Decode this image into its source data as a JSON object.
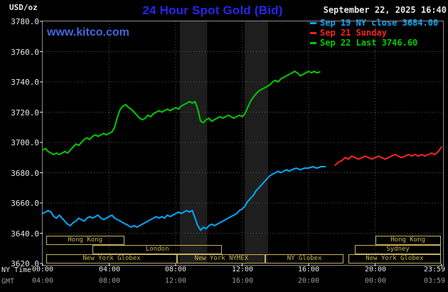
{
  "header": {
    "units": "USD/oz",
    "title": "24 Hour Spot Gold (Bid)",
    "datetime": "September 22, 2025 16:40",
    "watermark": "www.kitco.com"
  },
  "legend": [
    {
      "label": "Sep 19 NY close 3684.00",
      "color": "#00aaff"
    },
    {
      "label": "Sep 21 Sunday",
      "color": "#ff2222"
    },
    {
      "label": "Sep 22 Last 3746.60",
      "color": "#00cc00"
    }
  ],
  "axes": {
    "x": {
      "hours": [
        0,
        4,
        8,
        12,
        16,
        20,
        23.983
      ],
      "ny_labels": [
        "00:00",
        "04:00",
        "08:00",
        "12:00",
        "16:00",
        "20:00",
        "23:59"
      ],
      "gmt_labels": [
        "04:00",
        "08:00",
        "12:00",
        "16:00",
        "20:00",
        "00:00",
        "03:59"
      ],
      "row_labels": {
        "ny": "NY Time",
        "gmt": "GMT"
      }
    },
    "y": {
      "values": [
        3780,
        3760,
        3740,
        3720,
        3700,
        3680,
        3660,
        3640,
        3620
      ],
      "labels": [
        "3780.0",
        "3760.0",
        "3740.0",
        "3720.0",
        "3700.0",
        "3680.0",
        "3660.0",
        "3640.0",
        "3620.0"
      ]
    }
  },
  "sessions": [
    {
      "row": 0,
      "start": 0.2,
      "end": 4.9,
      "label": "Hong Kong"
    },
    {
      "row": 0,
      "start": 20.0,
      "end": 23.95,
      "label": "Hong Kong"
    },
    {
      "row": 1,
      "start": 3.0,
      "end": 10.8,
      "label": "London"
    },
    {
      "row": 1,
      "start": 18.8,
      "end": 23.95,
      "label": "Sydney"
    },
    {
      "row": 2,
      "start": 0.2,
      "end": 8.1,
      "label": "New York Globex"
    },
    {
      "row": 2,
      "start": 8.1,
      "end": 13.4,
      "label": "New York NYMEX"
    },
    {
      "row": 2,
      "start": 13.4,
      "end": 18.1,
      "label": "NY Globex"
    },
    {
      "row": 2,
      "start": 18.4,
      "end": 23.95,
      "label": "New York Globex"
    }
  ],
  "colors": {
    "background": "#000000",
    "title_blue": "#2525ee",
    "watermark_blue": "#4169e1",
    "axis_text": "#e8e8e8",
    "gmt_text": "#9a9a9a",
    "grid": "#565656",
    "border": "#8c8c8c",
    "band": "#1e1e1e",
    "session": "#c6b358"
  },
  "chart_data": {
    "type": "line",
    "title": "24 Hour Spot Gold (Bid)",
    "xlabel": "NY Time",
    "ylabel": "USD/oz",
    "xlim": [
      0,
      24
    ],
    "ylim": [
      3620,
      3780
    ],
    "grid": true,
    "legend_position": "top-right",
    "bands": [
      {
        "from": 8.25,
        "to": 9.9
      },
      {
        "from": 12.15,
        "to": 13.56
      }
    ],
    "series": [
      {
        "id": "sep19",
        "name": "Sep 19 NY close 3684.00",
        "color": "#00aaff",
        "points": [
          [
            0,
            3653
          ],
          [
            0.17,
            3654
          ],
          [
            0.33,
            3655
          ],
          [
            0.5,
            3654
          ],
          [
            0.67,
            3651
          ],
          [
            0.83,
            3650
          ],
          [
            1,
            3652
          ],
          [
            1.17,
            3650
          ],
          [
            1.33,
            3648
          ],
          [
            1.5,
            3646
          ],
          [
            1.67,
            3645
          ],
          [
            1.83,
            3647
          ],
          [
            2,
            3648
          ],
          [
            2.17,
            3650
          ],
          [
            2.33,
            3649
          ],
          [
            2.5,
            3648
          ],
          [
            2.67,
            3650
          ],
          [
            2.83,
            3651
          ],
          [
            3,
            3650
          ],
          [
            3.17,
            3651
          ],
          [
            3.33,
            3652
          ],
          [
            3.5,
            3650
          ],
          [
            3.67,
            3649
          ],
          [
            3.83,
            3650
          ],
          [
            4,
            3651
          ],
          [
            4.17,
            3652
          ],
          [
            4.33,
            3650
          ],
          [
            4.5,
            3649
          ],
          [
            4.67,
            3648
          ],
          [
            4.83,
            3647
          ],
          [
            5,
            3646
          ],
          [
            5.17,
            3645
          ],
          [
            5.33,
            3644
          ],
          [
            5.5,
            3645
          ],
          [
            5.67,
            3644
          ],
          [
            5.83,
            3645
          ],
          [
            6,
            3646
          ],
          [
            6.17,
            3647
          ],
          [
            6.33,
            3648
          ],
          [
            6.5,
            3649
          ],
          [
            6.67,
            3650
          ],
          [
            6.83,
            3651
          ],
          [
            7,
            3650
          ],
          [
            7.17,
            3651
          ],
          [
            7.33,
            3650
          ],
          [
            7.5,
            3652
          ],
          [
            7.67,
            3651
          ],
          [
            7.83,
            3652
          ],
          [
            8,
            3653
          ],
          [
            8.17,
            3654
          ],
          [
            8.33,
            3653
          ],
          [
            8.5,
            3654
          ],
          [
            8.67,
            3655
          ],
          [
            8.83,
            3654
          ],
          [
            9,
            3655
          ],
          [
            9.17,
            3650
          ],
          [
            9.33,
            3645
          ],
          [
            9.5,
            3642
          ],
          [
            9.67,
            3644
          ],
          [
            9.83,
            3643
          ],
          [
            10,
            3645
          ],
          [
            10.17,
            3646
          ],
          [
            10.33,
            3645
          ],
          [
            10.5,
            3646
          ],
          [
            10.67,
            3647
          ],
          [
            10.83,
            3648
          ],
          [
            11,
            3649
          ],
          [
            11.17,
            3650
          ],
          [
            11.33,
            3651
          ],
          [
            11.5,
            3652
          ],
          [
            11.67,
            3653
          ],
          [
            11.83,
            3655
          ],
          [
            12,
            3656
          ],
          [
            12.17,
            3658
          ],
          [
            12.33,
            3661
          ],
          [
            12.5,
            3663
          ],
          [
            12.67,
            3665
          ],
          [
            12.83,
            3668
          ],
          [
            13,
            3670
          ],
          [
            13.17,
            3672
          ],
          [
            13.33,
            3674
          ],
          [
            13.5,
            3676
          ],
          [
            13.67,
            3678
          ],
          [
            13.83,
            3679
          ],
          [
            14,
            3680
          ],
          [
            14.17,
            3681
          ],
          [
            14.33,
            3680
          ],
          [
            14.5,
            3681
          ],
          [
            14.67,
            3682
          ],
          [
            14.83,
            3681
          ],
          [
            15,
            3682
          ],
          [
            15.25,
            3683
          ],
          [
            15.5,
            3682
          ],
          [
            15.75,
            3683
          ],
          [
            16,
            3683
          ],
          [
            16.25,
            3684
          ],
          [
            16.5,
            3683
          ],
          [
            16.75,
            3684
          ],
          [
            17,
            3684
          ]
        ]
      },
      {
        "id": "sep21",
        "name": "Sep 21 Sunday",
        "color": "#ff2222",
        "points": [
          [
            17.6,
            3685
          ],
          [
            17.8,
            3687
          ],
          [
            18,
            3688
          ],
          [
            18.2,
            3690
          ],
          [
            18.4,
            3689
          ],
          [
            18.6,
            3691
          ],
          [
            18.8,
            3690
          ],
          [
            19,
            3689
          ],
          [
            19.2,
            3690
          ],
          [
            19.4,
            3691
          ],
          [
            19.6,
            3690
          ],
          [
            19.8,
            3689
          ],
          [
            20,
            3690
          ],
          [
            20.2,
            3691
          ],
          [
            20.4,
            3690
          ],
          [
            20.6,
            3689
          ],
          [
            20.8,
            3690
          ],
          [
            21,
            3691
          ],
          [
            21.2,
            3692
          ],
          [
            21.4,
            3691
          ],
          [
            21.6,
            3690
          ],
          [
            21.8,
            3691
          ],
          [
            22,
            3692
          ],
          [
            22.2,
            3691
          ],
          [
            22.4,
            3692
          ],
          [
            22.6,
            3691
          ],
          [
            22.8,
            3692
          ],
          [
            23,
            3691
          ],
          [
            23.2,
            3692
          ],
          [
            23.4,
            3693
          ],
          [
            23.6,
            3692
          ],
          [
            23.8,
            3694
          ],
          [
            24,
            3697
          ]
        ]
      },
      {
        "id": "sep22",
        "name": "Sep 22 Last 3746.60",
        "color": "#00cc00",
        "points": [
          [
            0,
            3695
          ],
          [
            0.17,
            3696
          ],
          [
            0.33,
            3694
          ],
          [
            0.5,
            3693
          ],
          [
            0.67,
            3692
          ],
          [
            0.83,
            3693
          ],
          [
            1,
            3692
          ],
          [
            1.17,
            3693
          ],
          [
            1.33,
            3694
          ],
          [
            1.5,
            3693
          ],
          [
            1.67,
            3695
          ],
          [
            1.83,
            3697
          ],
          [
            2,
            3699
          ],
          [
            2.17,
            3698
          ],
          [
            2.33,
            3700
          ],
          [
            2.5,
            3702
          ],
          [
            2.67,
            3703
          ],
          [
            2.83,
            3702
          ],
          [
            3,
            3704
          ],
          [
            3.17,
            3705
          ],
          [
            3.33,
            3704
          ],
          [
            3.5,
            3705
          ],
          [
            3.67,
            3706
          ],
          [
            3.83,
            3705
          ],
          [
            4,
            3706
          ],
          [
            4.17,
            3707
          ],
          [
            4.33,
            3710
          ],
          [
            4.5,
            3717
          ],
          [
            4.67,
            3722
          ],
          [
            4.83,
            3724
          ],
          [
            5,
            3725
          ],
          [
            5.17,
            3723
          ],
          [
            5.33,
            3722
          ],
          [
            5.5,
            3720
          ],
          [
            5.67,
            3718
          ],
          [
            5.83,
            3716
          ],
          [
            6,
            3715
          ],
          [
            6.17,
            3716
          ],
          [
            6.33,
            3718
          ],
          [
            6.5,
            3717
          ],
          [
            6.67,
            3719
          ],
          [
            6.83,
            3720
          ],
          [
            7,
            3721
          ],
          [
            7.17,
            3720
          ],
          [
            7.33,
            3721
          ],
          [
            7.5,
            3722
          ],
          [
            7.67,
            3721
          ],
          [
            7.83,
            3722
          ],
          [
            8,
            3723
          ],
          [
            8.17,
            3722
          ],
          [
            8.33,
            3724
          ],
          [
            8.5,
            3725
          ],
          [
            8.67,
            3726
          ],
          [
            8.83,
            3727
          ],
          [
            9,
            3726
          ],
          [
            9.17,
            3727
          ],
          [
            9.33,
            3722
          ],
          [
            9.5,
            3714
          ],
          [
            9.67,
            3713
          ],
          [
            9.83,
            3715
          ],
          [
            10,
            3716
          ],
          [
            10.17,
            3714
          ],
          [
            10.33,
            3715
          ],
          [
            10.5,
            3716
          ],
          [
            10.67,
            3717
          ],
          [
            10.83,
            3716
          ],
          [
            11,
            3717
          ],
          [
            11.17,
            3718
          ],
          [
            11.33,
            3717
          ],
          [
            11.5,
            3716
          ],
          [
            11.67,
            3717
          ],
          [
            11.83,
            3718
          ],
          [
            12,
            3717
          ],
          [
            12.17,
            3719
          ],
          [
            12.33,
            3723
          ],
          [
            12.5,
            3727
          ],
          [
            12.67,
            3730
          ],
          [
            12.83,
            3732
          ],
          [
            13,
            3734
          ],
          [
            13.17,
            3735
          ],
          [
            13.33,
            3736
          ],
          [
            13.5,
            3737
          ],
          [
            13.67,
            3738
          ],
          [
            13.83,
            3740
          ],
          [
            14,
            3741
          ],
          [
            14.17,
            3740
          ],
          [
            14.33,
            3742
          ],
          [
            14.5,
            3743
          ],
          [
            14.67,
            3744
          ],
          [
            14.83,
            3745
          ],
          [
            15,
            3746
          ],
          [
            15.17,
            3747
          ],
          [
            15.33,
            3746
          ],
          [
            15.5,
            3744
          ],
          [
            15.67,
            3745
          ],
          [
            15.83,
            3746
          ],
          [
            16,
            3747
          ],
          [
            16.17,
            3746
          ],
          [
            16.33,
            3747
          ],
          [
            16.5,
            3746
          ],
          [
            16.67,
            3746.6
          ]
        ]
      }
    ]
  }
}
